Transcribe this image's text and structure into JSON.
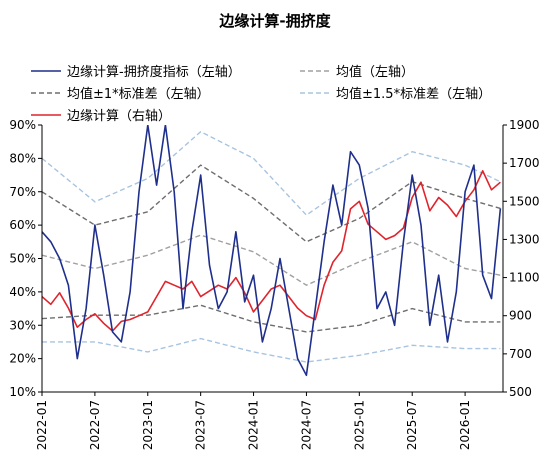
{
  "chart_data": {
    "type": "line",
    "title": "边缘计算-拥挤度",
    "x_ticks": [
      "2022-01",
      "2022-07",
      "2023-01",
      "2023-07",
      "2024-01",
      "2024-07",
      "2025-01",
      "2025-07",
      "2026-01"
    ],
    "y_left": {
      "min": 10,
      "max": 90,
      "ticks": [
        "10%",
        "20%",
        "30%",
        "40%",
        "50%",
        "60%",
        "70%",
        "80%",
        "90%"
      ]
    },
    "y_right": {
      "min": 500,
      "max": 1900,
      "ticks": [
        "500",
        "700",
        "900",
        "1100",
        "1300",
        "1500",
        "1700",
        "1900"
      ]
    },
    "grid": false,
    "legend_placement": "top",
    "series": [
      {
        "name": "边缘计算-拥挤度指标（左轴）",
        "axis": "left",
        "color": "#1f2f8c",
        "style": "solid",
        "points": [
          [
            "2022-01",
            58
          ],
          [
            "2022-02",
            55
          ],
          [
            "2022-03",
            50
          ],
          [
            "2022-04",
            42
          ],
          [
            "2022-05",
            20
          ],
          [
            "2022-06",
            35
          ],
          [
            "2022-07",
            60
          ],
          [
            "2022-08",
            45
          ],
          [
            "2022-09",
            28
          ],
          [
            "2022-10",
            25
          ],
          [
            "2022-11",
            40
          ],
          [
            "2022-12",
            70
          ],
          [
            "2023-01",
            90
          ],
          [
            "2023-02",
            72
          ],
          [
            "2023-03",
            90
          ],
          [
            "2023-04",
            70
          ],
          [
            "2023-05",
            35
          ],
          [
            "2023-06",
            58
          ],
          [
            "2023-07",
            75
          ],
          [
            "2023-08",
            48
          ],
          [
            "2023-09",
            35
          ],
          [
            "2023-10",
            40
          ],
          [
            "2023-11",
            58
          ],
          [
            "2023-12",
            37
          ],
          [
            "2024-01",
            45
          ],
          [
            "2024-02",
            25
          ],
          [
            "2024-03",
            35
          ],
          [
            "2024-04",
            50
          ],
          [
            "2024-05",
            35
          ],
          [
            "2024-06",
            20
          ],
          [
            "2024-07",
            15
          ],
          [
            "2024-08",
            35
          ],
          [
            "2024-09",
            55
          ],
          [
            "2024-10",
            72
          ],
          [
            "2024-11",
            60
          ],
          [
            "2024-12",
            82
          ],
          [
            "2025-01",
            78
          ],
          [
            "2025-02",
            65
          ],
          [
            "2025-03",
            35
          ],
          [
            "2025-04",
            40
          ],
          [
            "2025-05",
            30
          ],
          [
            "2025-06",
            55
          ],
          [
            "2025-07",
            75
          ],
          [
            "2025-08",
            60
          ],
          [
            "2025-09",
            30
          ],
          [
            "2025-10",
            45
          ],
          [
            "2025-11",
            25
          ],
          [
            "2025-12",
            40
          ],
          [
            "2026-01",
            70
          ],
          [
            "2026-02",
            78
          ],
          [
            "2026-03",
            45
          ],
          [
            "2026-04",
            38
          ],
          [
            "2026-05",
            65
          ]
        ]
      },
      {
        "name": "均值（左轴）",
        "axis": "left",
        "color": "#a0a0a0",
        "style": "dashed",
        "points": [
          [
            "2022-01",
            51
          ],
          [
            "2022-07",
            47
          ],
          [
            "2023-01",
            51
          ],
          [
            "2023-07",
            57
          ],
          [
            "2024-01",
            52
          ],
          [
            "2024-07",
            42
          ],
          [
            "2025-01",
            49
          ],
          [
            "2025-07",
            55
          ],
          [
            "2026-01",
            47
          ],
          [
            "2026-05",
            45
          ]
        ]
      },
      {
        "name": "均值±1*标准差（左轴）",
        "axis": "left",
        "color": "#6e6e6e",
        "style": "dashed",
        "group": "upper",
        "points": [
          [
            "2022-01",
            70
          ],
          [
            "2022-07",
            60
          ],
          [
            "2023-01",
            64
          ],
          [
            "2023-07",
            78
          ],
          [
            "2024-01",
            68
          ],
          [
            "2024-07",
            55
          ],
          [
            "2025-01",
            62
          ],
          [
            "2025-07",
            73
          ],
          [
            "2026-01",
            68
          ],
          [
            "2026-05",
            65
          ]
        ]
      },
      {
        "name": "均值±1*标准差（左轴）",
        "axis": "left",
        "color": "#6e6e6e",
        "style": "dashed",
        "group": "lower",
        "points": [
          [
            "2022-01",
            32
          ],
          [
            "2022-07",
            33
          ],
          [
            "2023-01",
            33
          ],
          [
            "2023-07",
            36
          ],
          [
            "2024-01",
            31
          ],
          [
            "2024-07",
            28
          ],
          [
            "2025-01",
            30
          ],
          [
            "2025-07",
            35
          ],
          [
            "2026-01",
            31
          ],
          [
            "2026-05",
            31
          ]
        ]
      },
      {
        "name": "均值±1.5*标准差（左轴）",
        "axis": "left",
        "color": "#a8c4e0",
        "style": "dashed",
        "group": "upper",
        "points": [
          [
            "2022-01",
            80
          ],
          [
            "2022-07",
            67
          ],
          [
            "2023-01",
            74
          ],
          [
            "2023-07",
            88
          ],
          [
            "2024-01",
            80
          ],
          [
            "2024-07",
            63
          ],
          [
            "2025-01",
            74
          ],
          [
            "2025-07",
            82
          ],
          [
            "2026-01",
            78
          ],
          [
            "2026-05",
            73
          ]
        ]
      },
      {
        "name": "均值±1.5*标准差（左轴）",
        "axis": "left",
        "color": "#a8c4e0",
        "style": "dashed",
        "group": "lower",
        "points": [
          [
            "2022-01",
            25
          ],
          [
            "2022-07",
            25
          ],
          [
            "2023-01",
            22
          ],
          [
            "2023-07",
            26
          ],
          [
            "2024-01",
            22
          ],
          [
            "2024-07",
            19
          ],
          [
            "2025-01",
            21
          ],
          [
            "2025-07",
            24
          ],
          [
            "2026-01",
            23
          ],
          [
            "2026-05",
            23
          ]
        ]
      },
      {
        "name": "边缘计算（右轴）",
        "axis": "right",
        "color": "#e0242c",
        "style": "solid",
        "points": [
          [
            "2022-01",
            1000
          ],
          [
            "2022-02",
            960
          ],
          [
            "2022-03",
            1020
          ],
          [
            "2022-04",
            940
          ],
          [
            "2022-05",
            840
          ],
          [
            "2022-06",
            880
          ],
          [
            "2022-07",
            910
          ],
          [
            "2022-08",
            860
          ],
          [
            "2022-09",
            820
          ],
          [
            "2022-10",
            870
          ],
          [
            "2022-11",
            880
          ],
          [
            "2022-12",
            900
          ],
          [
            "2023-01",
            920
          ],
          [
            "2023-02",
            1000
          ],
          [
            "2023-03",
            1080
          ],
          [
            "2023-04",
            1060
          ],
          [
            "2023-05",
            1040
          ],
          [
            "2023-06",
            1080
          ],
          [
            "2023-07",
            1000
          ],
          [
            "2023-08",
            1030
          ],
          [
            "2023-09",
            1060
          ],
          [
            "2023-10",
            1040
          ],
          [
            "2023-11",
            1100
          ],
          [
            "2023-12",
            1020
          ],
          [
            "2024-01",
            920
          ],
          [
            "2024-02",
            980
          ],
          [
            "2024-03",
            1040
          ],
          [
            "2024-04",
            1060
          ],
          [
            "2024-05",
            1000
          ],
          [
            "2024-06",
            940
          ],
          [
            "2024-07",
            900
          ],
          [
            "2024-08",
            880
          ],
          [
            "2024-09",
            1060
          ],
          [
            "2024-10",
            1180
          ],
          [
            "2024-11",
            1240
          ],
          [
            "2024-12",
            1460
          ],
          [
            "2025-01",
            1500
          ],
          [
            "2025-02",
            1380
          ],
          [
            "2025-03",
            1340
          ],
          [
            "2025-04",
            1300
          ],
          [
            "2025-05",
            1320
          ],
          [
            "2025-06",
            1360
          ],
          [
            "2025-07",
            1520
          ],
          [
            "2025-08",
            1600
          ],
          [
            "2025-09",
            1450
          ],
          [
            "2025-10",
            1520
          ],
          [
            "2025-11",
            1480
          ],
          [
            "2025-12",
            1420
          ],
          [
            "2026-01",
            1500
          ],
          [
            "2026-02",
            1560
          ],
          [
            "2026-03",
            1660
          ],
          [
            "2026-04",
            1560
          ],
          [
            "2026-05",
            1600
          ]
        ]
      }
    ],
    "legend": [
      {
        "label": "边缘计算-拥挤度指标（左轴）",
        "color": "#1f2f8c",
        "style": "solid"
      },
      {
        "label": "均值（左轴）",
        "color": "#a0a0a0",
        "style": "dashed"
      },
      {
        "label": "均值±1*标准差（左轴）",
        "color": "#6e6e6e",
        "style": "dashed"
      },
      {
        "label": "均值±1.5*标准差（左轴）",
        "color": "#a8c4e0",
        "style": "dashed"
      },
      {
        "label": "边缘计算（右轴）",
        "color": "#e0242c",
        "style": "solid"
      }
    ]
  }
}
